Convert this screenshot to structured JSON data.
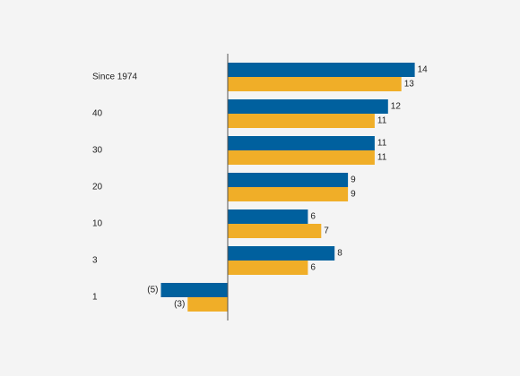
{
  "chart_data": {
    "type": "bar",
    "orientation": "horizontal",
    "categories": [
      "Since 1974",
      "40",
      "30",
      "20",
      "10",
      "3",
      "1"
    ],
    "series": [
      {
        "color": "#00609e",
        "values": [
          14,
          12,
          11,
          9,
          6,
          8,
          -5
        ],
        "value_labels": [
          "14",
          "12",
          "11",
          "9",
          "6",
          "8",
          "(5)"
        ]
      },
      {
        "color": "#f0ae28",
        "values": [
          13,
          11,
          11,
          9,
          7,
          6,
          -3
        ],
        "value_labels": [
          "13",
          "11",
          "11",
          "9",
          "7",
          "6",
          "(3)"
        ]
      }
    ]
  }
}
